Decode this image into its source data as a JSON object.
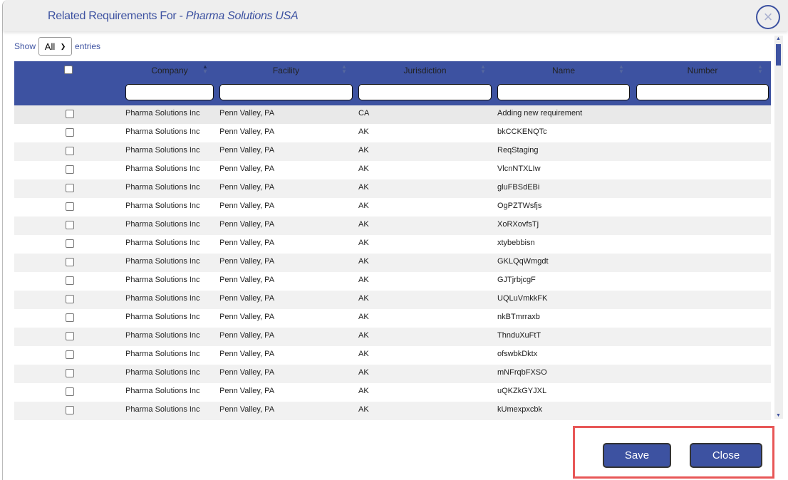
{
  "modal": {
    "title_prefix": "Related Requirements For - ",
    "title_entity": "Pharma Solutions USA",
    "close_icon": "×"
  },
  "length": {
    "show": "Show",
    "value": "All",
    "entries": "entries"
  },
  "columns": [
    "Company",
    "Facility",
    "Jurisdiction",
    "Name",
    "Number"
  ],
  "sorted_column": "Company",
  "colors": {
    "accent": "#3d52a1",
    "highlight": "#e85757"
  },
  "rows": [
    [
      "Pharma Solutions Inc",
      "Penn Valley, PA",
      "CA",
      "Adding new requirement",
      ""
    ],
    [
      "Pharma Solutions Inc",
      "Penn Valley, PA",
      "AK",
      "bkCCKENQTc",
      ""
    ],
    [
      "Pharma Solutions Inc",
      "Penn Valley, PA",
      "AK",
      "ReqStaging",
      ""
    ],
    [
      "Pharma Solutions Inc",
      "Penn Valley, PA",
      "AK",
      "VlcnNTXLIw",
      ""
    ],
    [
      "Pharma Solutions Inc",
      "Penn Valley, PA",
      "AK",
      "gluFBSdEBi",
      ""
    ],
    [
      "Pharma Solutions Inc",
      "Penn Valley, PA",
      "AK",
      "OgPZTWsfjs",
      ""
    ],
    [
      "Pharma Solutions Inc",
      "Penn Valley, PA",
      "AK",
      "XoRXovfsTj",
      ""
    ],
    [
      "Pharma Solutions Inc",
      "Penn Valley, PA",
      "AK",
      "xtybebbisn",
      ""
    ],
    [
      "Pharma Solutions Inc",
      "Penn Valley, PA",
      "AK",
      "GKLQqWmgdt",
      ""
    ],
    [
      "Pharma Solutions Inc",
      "Penn Valley, PA",
      "AK",
      "GJTjrbjcgF",
      ""
    ],
    [
      "Pharma Solutions Inc",
      "Penn Valley, PA",
      "AK",
      "UQLuVmkkFK",
      ""
    ],
    [
      "Pharma Solutions Inc",
      "Penn Valley, PA",
      "AK",
      "nkBTmrraxb",
      ""
    ],
    [
      "Pharma Solutions Inc",
      "Penn Valley, PA",
      "AK",
      "ThnduXuFtT",
      ""
    ],
    [
      "Pharma Solutions Inc",
      "Penn Valley, PA",
      "AK",
      "ofswbkDktx",
      ""
    ],
    [
      "Pharma Solutions Inc",
      "Penn Valley, PA",
      "AK",
      "mNFrqbFXSO",
      ""
    ],
    [
      "Pharma Solutions Inc",
      "Penn Valley, PA",
      "AK",
      "uQKZkGYJXL",
      ""
    ],
    [
      "Pharma Solutions Inc",
      "Penn Valley, PA",
      "AK",
      "kUmexpxcbk",
      ""
    ]
  ],
  "buttons": {
    "save": "Save",
    "close": "Close"
  }
}
